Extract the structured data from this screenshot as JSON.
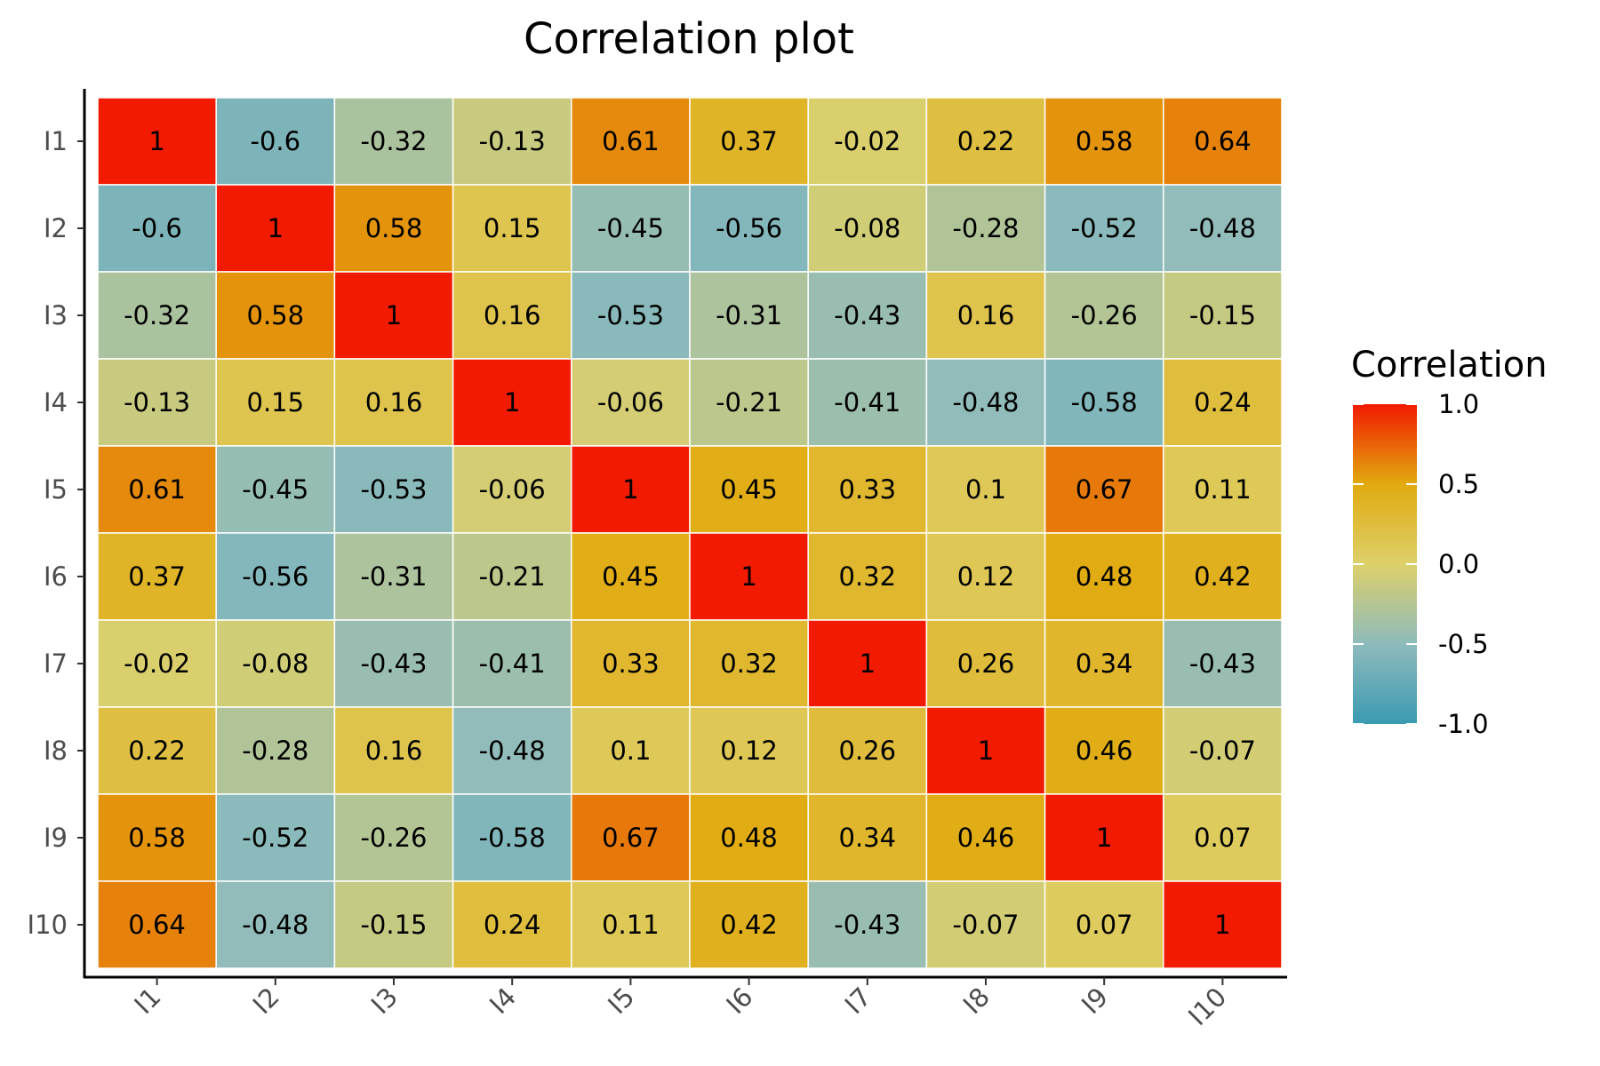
{
  "chart_data": {
    "type": "heatmap",
    "title": "Correlation plot",
    "xlabel": "",
    "ylabel": "",
    "x_categories": [
      "I1",
      "I2",
      "I3",
      "I4",
      "I5",
      "I6",
      "I7",
      "I8",
      "I9",
      "I10"
    ],
    "y_categories": [
      "I1",
      "I2",
      "I3",
      "I4",
      "I5",
      "I6",
      "I7",
      "I8",
      "I9",
      "I10"
    ],
    "values": [
      [
        1,
        -0.6,
        -0.32,
        -0.13,
        0.61,
        0.37,
        -0.02,
        0.22,
        0.58,
        0.64
      ],
      [
        -0.6,
        1,
        0.58,
        0.15,
        -0.45,
        -0.56,
        -0.08,
        -0.28,
        -0.52,
        -0.48
      ],
      [
        -0.32,
        0.58,
        1,
        0.16,
        -0.53,
        -0.31,
        -0.43,
        0.16,
        -0.26,
        -0.15
      ],
      [
        -0.13,
        0.15,
        0.16,
        1,
        -0.06,
        -0.21,
        -0.41,
        -0.48,
        -0.58,
        0.24
      ],
      [
        0.61,
        -0.45,
        -0.53,
        -0.06,
        1,
        0.45,
        0.33,
        0.1,
        0.67,
        0.11
      ],
      [
        0.37,
        -0.56,
        -0.31,
        -0.21,
        0.45,
        1,
        0.32,
        0.12,
        0.48,
        0.42
      ],
      [
        -0.02,
        -0.08,
        -0.43,
        -0.41,
        0.33,
        0.32,
        1,
        0.26,
        0.34,
        -0.43
      ],
      [
        0.22,
        -0.28,
        0.16,
        -0.48,
        0.1,
        0.12,
        0.26,
        1,
        0.46,
        -0.07
      ],
      [
        0.58,
        -0.52,
        -0.26,
        -0.58,
        0.67,
        0.48,
        0.34,
        0.46,
        1,
        0.07
      ],
      [
        0.64,
        -0.48,
        -0.15,
        0.24,
        0.11,
        0.42,
        -0.43,
        -0.07,
        0.07,
        1
      ]
    ],
    "legend": {
      "title": "Correlation",
      "position": "right",
      "range": [
        -1.0,
        1.0
      ],
      "ticks": [
        1.0,
        0.5,
        0.0,
        -0.5,
        -1.0
      ],
      "tick_labels": [
        "1.0",
        "0.5",
        "0.0",
        "-0.5",
        "-1.0"
      ]
    },
    "color_scale": [
      {
        "value": -1.0,
        "color": "#3B9AB2"
      },
      {
        "value": -0.5,
        "color": "#8EBBBC"
      },
      {
        "value": 0.0,
        "color": "#DDD06A"
      },
      {
        "value": 0.5,
        "color": "#E1AA0F"
      },
      {
        "value": 1.0,
        "color": "#F21A00"
      }
    ],
    "grid": false
  }
}
